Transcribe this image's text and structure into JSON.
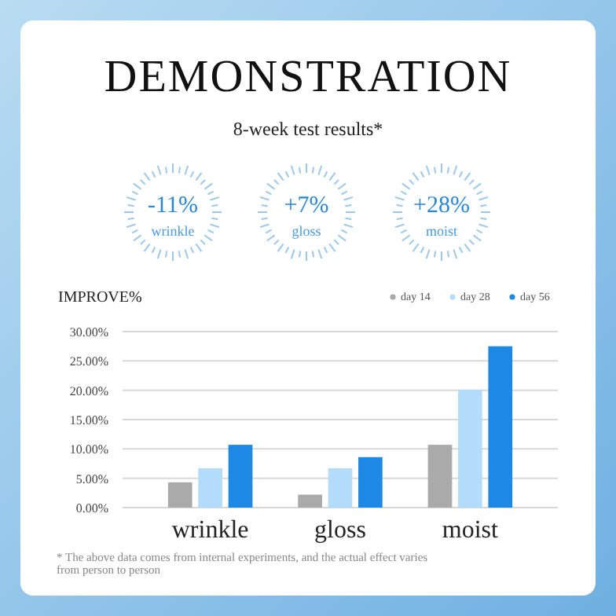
{
  "chart_data": {
    "type": "bar",
    "title": "DEMONSTRATION",
    "subtitle": "8-week test results*",
    "ylabel": "IMPROVE%",
    "categories": [
      "wrinkle",
      "gloss",
      "moist"
    ],
    "series": [
      {
        "name": "day 14",
        "color": "#aaaaaa",
        "values": [
          4.3,
          2.2,
          10.7
        ]
      },
      {
        "name": "day 28",
        "color": "#b3dcfb",
        "values": [
          6.7,
          6.7,
          20.1
        ]
      },
      {
        "name": "day 56",
        "color": "#1e88e5",
        "values": [
          10.7,
          8.6,
          27.5
        ]
      }
    ],
    "ylim": [
      0,
      30
    ],
    "yticks": [
      {
        "value": 0,
        "label": "0.00%"
      },
      {
        "value": 5,
        "label": "5.00%"
      },
      {
        "value": 10,
        "label": "10.00%"
      },
      {
        "value": 15,
        "label": "15.00%"
      },
      {
        "value": 20,
        "label": "20.00%"
      },
      {
        "value": 25,
        "label": "25.00%"
      },
      {
        "value": 30,
        "label": "30.00%"
      }
    ],
    "grid": "y",
    "legend": "top right",
    "annotations": [
      "-11%",
      "wrinkle",
      "+7%",
      "gloss",
      "+28%",
      "moist",
      "* The above data comes from internal experiments, and the actual effect varies from person to person"
    ]
  }
}
